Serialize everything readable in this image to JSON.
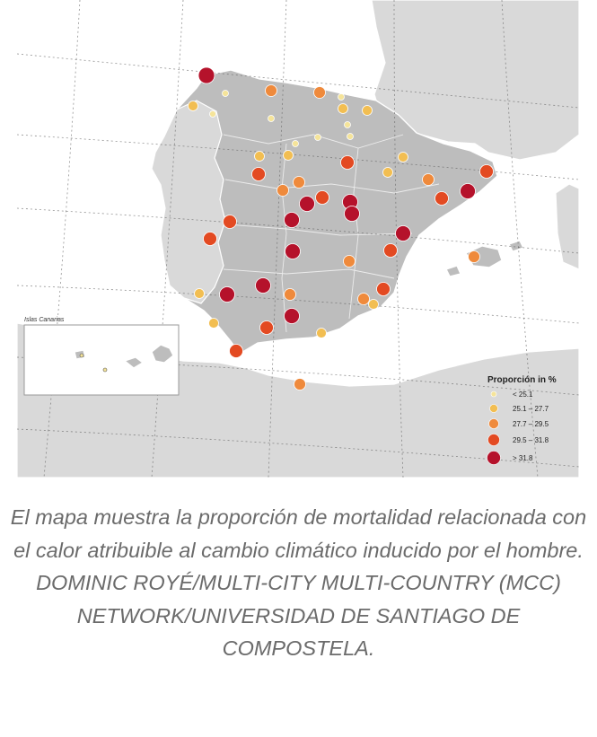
{
  "map": {
    "inset_title": "Islas Canarias",
    "legend": {
      "title": "Proporción in %",
      "classes": [
        {
          "label": "< 25.1",
          "color": "#f5e49a"
        },
        {
          "label": "25.1 – 27.7",
          "color": "#f2be52"
        },
        {
          "label": "27.7 – 29.5",
          "color": "#ef8a3c"
        },
        {
          "label": "29.5 – 31.8",
          "color": "#e34a22"
        },
        {
          "label": "> 31.8",
          "color": "#b5122b"
        }
      ]
    },
    "colors": {
      "water": "#ffffff",
      "iberia": "#bdbdbd",
      "other_land": "#d9d9d9",
      "graticule": "#5a5a5a"
    }
  },
  "caption": "El mapa muestra la proporción de mortalidad relacionada con el calor atribuible al cambio climático inducido por el hombre. DOMINIC ROYÉ/MULTI-CITY MULTI-COUNTRY (MCC) NETWORK/UNIVERSIDAD DE SANTIAGO DE COMPOSTELA."
}
